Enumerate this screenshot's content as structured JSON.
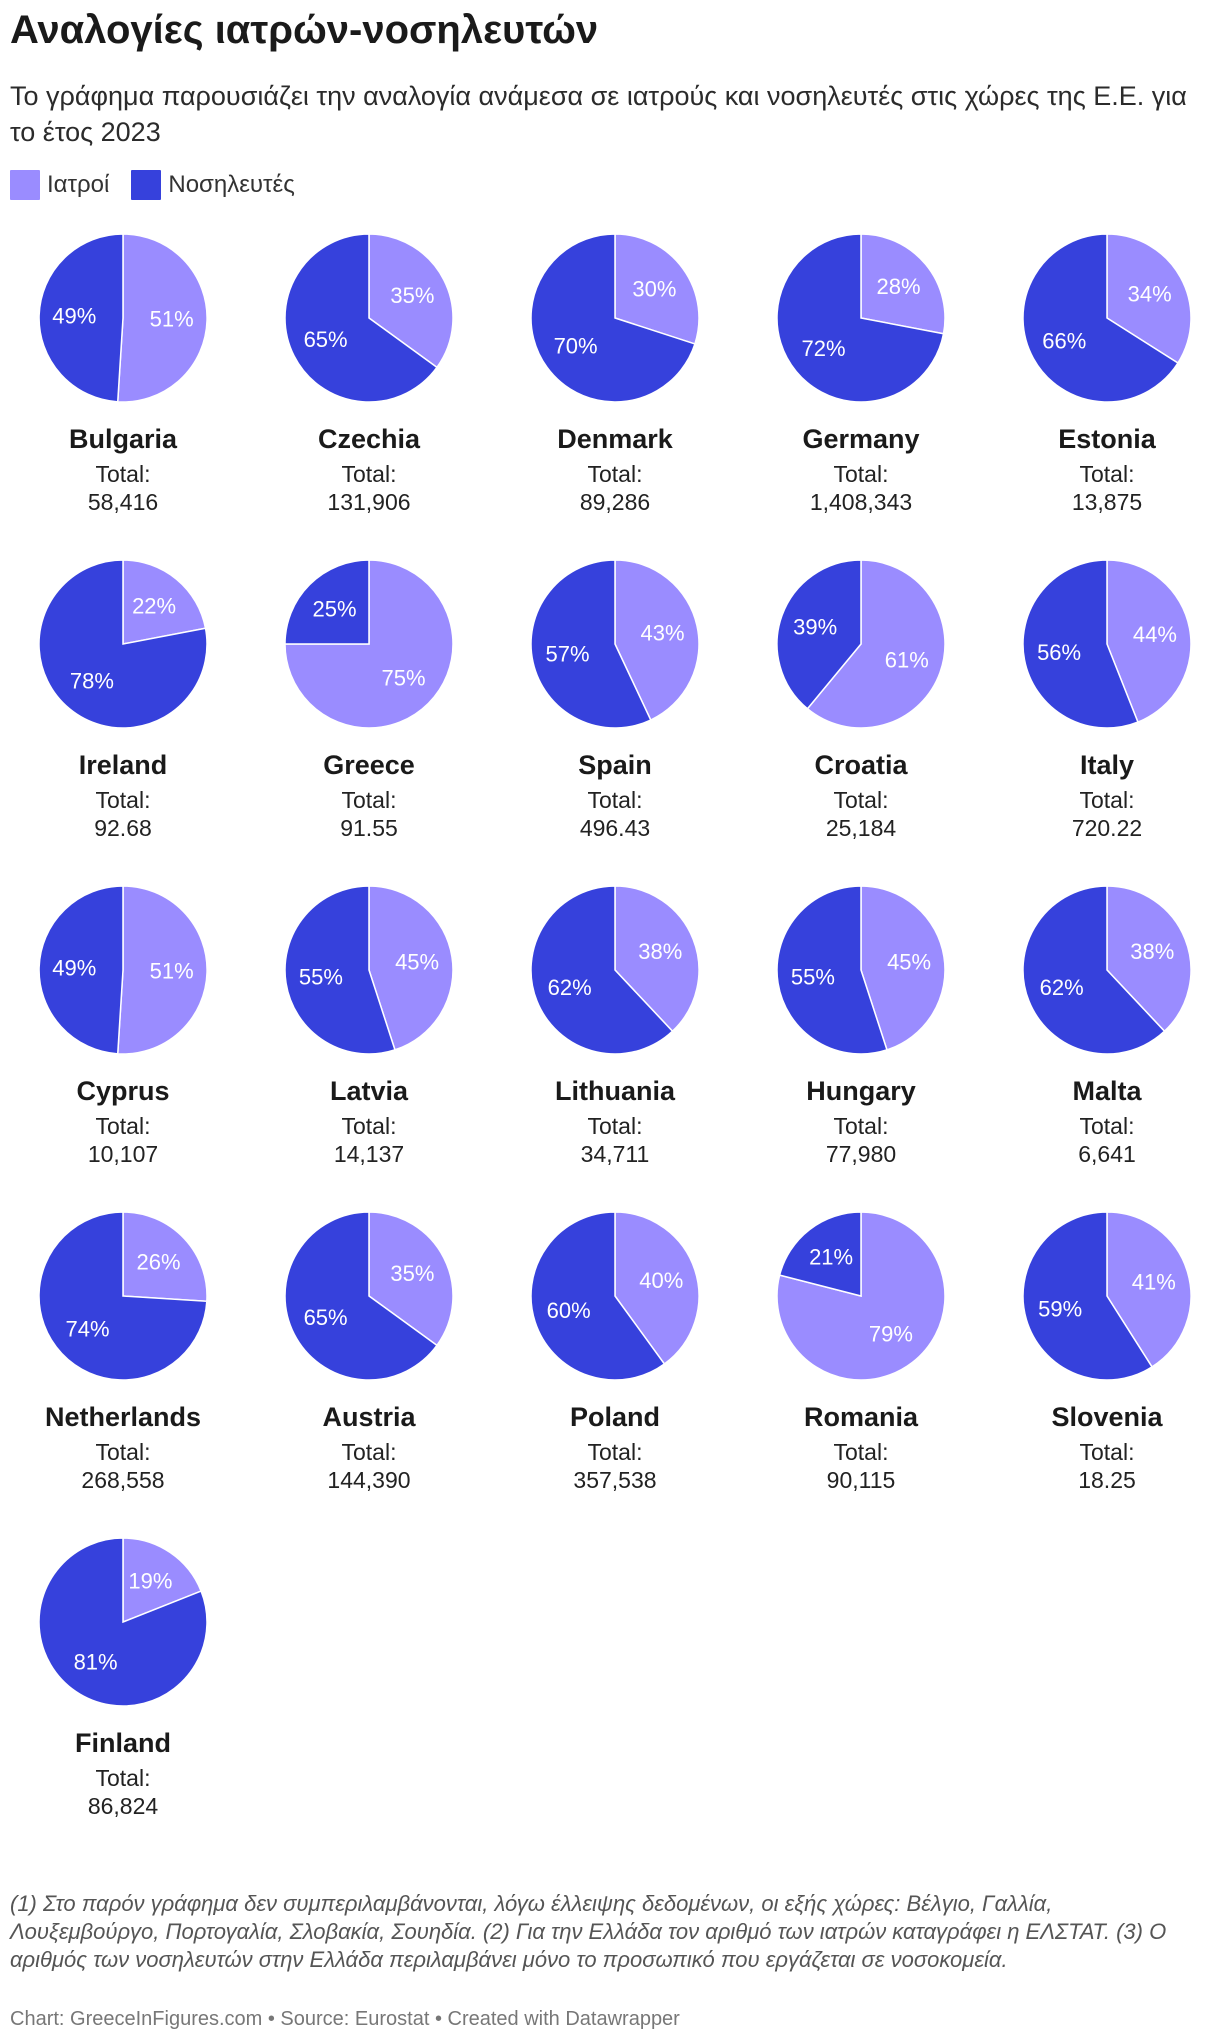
{
  "title": "Αναλογίες ιατρών-νοσηλευτών",
  "subtitle": "Το γράφημα παρουσιάζει την αναλογία ανάμεσα σε ιατρούς και νοσηλευτές στις χώρες της Ε.Ε. για το έτος 2023",
  "legend": [
    {
      "label": "Ιατροί",
      "color": "#9a8cff"
    },
    {
      "label": "Νοσηλευτές",
      "color": "#3641dc"
    }
  ],
  "total_label": "Total:",
  "chart_data": {
    "type": "pie",
    "series_names": [
      "Ιατροί",
      "Νοσηλευτές"
    ],
    "colors": {
      "doctors": "#9a8cff",
      "nurses": "#3641dc"
    },
    "countries": [
      {
        "name": "Bulgaria",
        "doctors": 51,
        "nurses": 49,
        "total": "58,416"
      },
      {
        "name": "Czechia",
        "doctors": 35,
        "nurses": 65,
        "total": "131,906"
      },
      {
        "name": "Denmark",
        "doctors": 30,
        "nurses": 70,
        "total": "89,286"
      },
      {
        "name": "Germany",
        "doctors": 28,
        "nurses": 72,
        "total": "1,408,343"
      },
      {
        "name": "Estonia",
        "doctors": 34,
        "nurses": 66,
        "total": "13,875"
      },
      {
        "name": "Ireland",
        "doctors": 22,
        "nurses": 78,
        "total": "92.68"
      },
      {
        "name": "Greece",
        "doctors": 75,
        "nurses": 25,
        "total": "91.55"
      },
      {
        "name": "Spain",
        "doctors": 43,
        "nurses": 57,
        "total": "496.43"
      },
      {
        "name": "Croatia",
        "doctors": 61,
        "nurses": 39,
        "total": "25,184"
      },
      {
        "name": "Italy",
        "doctors": 44,
        "nurses": 56,
        "total": "720.22"
      },
      {
        "name": "Cyprus",
        "doctors": 51,
        "nurses": 49,
        "total": "10,107"
      },
      {
        "name": "Latvia",
        "doctors": 45,
        "nurses": 55,
        "total": "14,137"
      },
      {
        "name": "Lithuania",
        "doctors": 38,
        "nurses": 62,
        "total": "34,711"
      },
      {
        "name": "Hungary",
        "doctors": 45,
        "nurses": 55,
        "total": "77,980"
      },
      {
        "name": "Malta",
        "doctors": 38,
        "nurses": 62,
        "total": "6,641"
      },
      {
        "name": "Netherlands",
        "doctors": 26,
        "nurses": 74,
        "total": "268,558"
      },
      {
        "name": "Austria",
        "doctors": 35,
        "nurses": 65,
        "total": "144,390"
      },
      {
        "name": "Poland",
        "doctors": 40,
        "nurses": 60,
        "total": "357,538"
      },
      {
        "name": "Romania",
        "doctors": 79,
        "nurses": 21,
        "total": "90,115"
      },
      {
        "name": "Slovenia",
        "doctors": 41,
        "nurses": 59,
        "total": "18.25"
      },
      {
        "name": "Finland",
        "doctors": 19,
        "nurses": 81,
        "total": "86,824"
      }
    ]
  },
  "notes": "(1) Στο παρόν γράφημα δεν συμπεριλαμβάνονται, λόγω έλλειψης δεδομένων, οι εξής χώρες: Βέλγιο, Γαλλία, Λουξεμβούργο, Πορτογαλία, Σλοβακία, Σουηδία. (2) Για την Ελλάδα τον αριθμό των ιατρών καταγράφει η ΕΛΣΤΑΤ. (3) Ο αριθμός των νοσηλευτών στην Ελλάδα περιλαμβάνει μόνο το προσωπικό που εργάζεται σε νοσοκομεία.",
  "footer": "Chart: GreeceInFigures.com • Source: Eurostat • Created with Datawrapper"
}
